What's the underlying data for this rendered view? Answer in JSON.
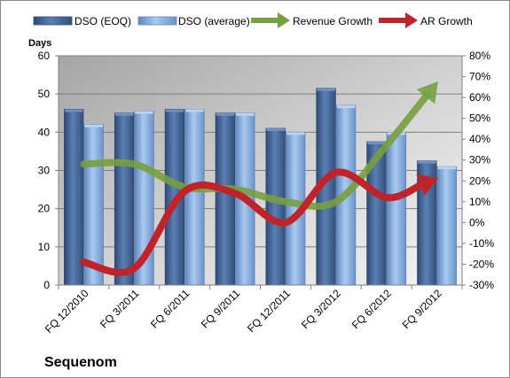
{
  "chart_data": {
    "type": "bar",
    "title": "",
    "company": "Sequenom",
    "y_left_label": "Days",
    "categories": [
      "FQ 12/2010",
      "FQ 3/2011",
      "FQ 6/2011",
      "FQ 9/2011",
      "FQ 12/2011",
      "FQ 3/2012",
      "FQ 6/2012",
      "FQ 9/2012"
    ],
    "y_left": {
      "min": 0,
      "max": 60,
      "step": 10,
      "ticks": [
        "0",
        "10",
        "20",
        "30",
        "40",
        "50",
        "60"
      ]
    },
    "y_right": {
      "min": -30,
      "max": 80,
      "step": 10,
      "ticks": [
        "-30%",
        "-20%",
        "-10%",
        "0%",
        "10%",
        "20%",
        "30%",
        "40%",
        "50%",
        "60%",
        "70%",
        "80%"
      ]
    },
    "grid": true,
    "legend_position": "top",
    "series": [
      {
        "name": "DSO (EOQ)",
        "axis": "left",
        "kind": "bar",
        "color": "#4a6a99",
        "values": [
          46,
          45,
          46,
          45,
          41,
          51.5,
          37.5,
          32.5
        ]
      },
      {
        "name": "DSO (average)",
        "axis": "left",
        "kind": "bar",
        "color": "#8fb4e3",
        "values": [
          42,
          45.5,
          46,
          45,
          40,
          47,
          40,
          31
        ]
      },
      {
        "name": "Revenue Growth",
        "axis": "right",
        "kind": "line",
        "color": "#77a03e",
        "values": [
          28,
          28,
          17,
          16,
          10,
          10,
          37,
          67
        ]
      },
      {
        "name": "AR Growth",
        "axis": "right",
        "kind": "line",
        "color": "#c0242a",
        "values": [
          -19,
          -22,
          15,
          14,
          0,
          24,
          12,
          21
        ]
      }
    ]
  }
}
